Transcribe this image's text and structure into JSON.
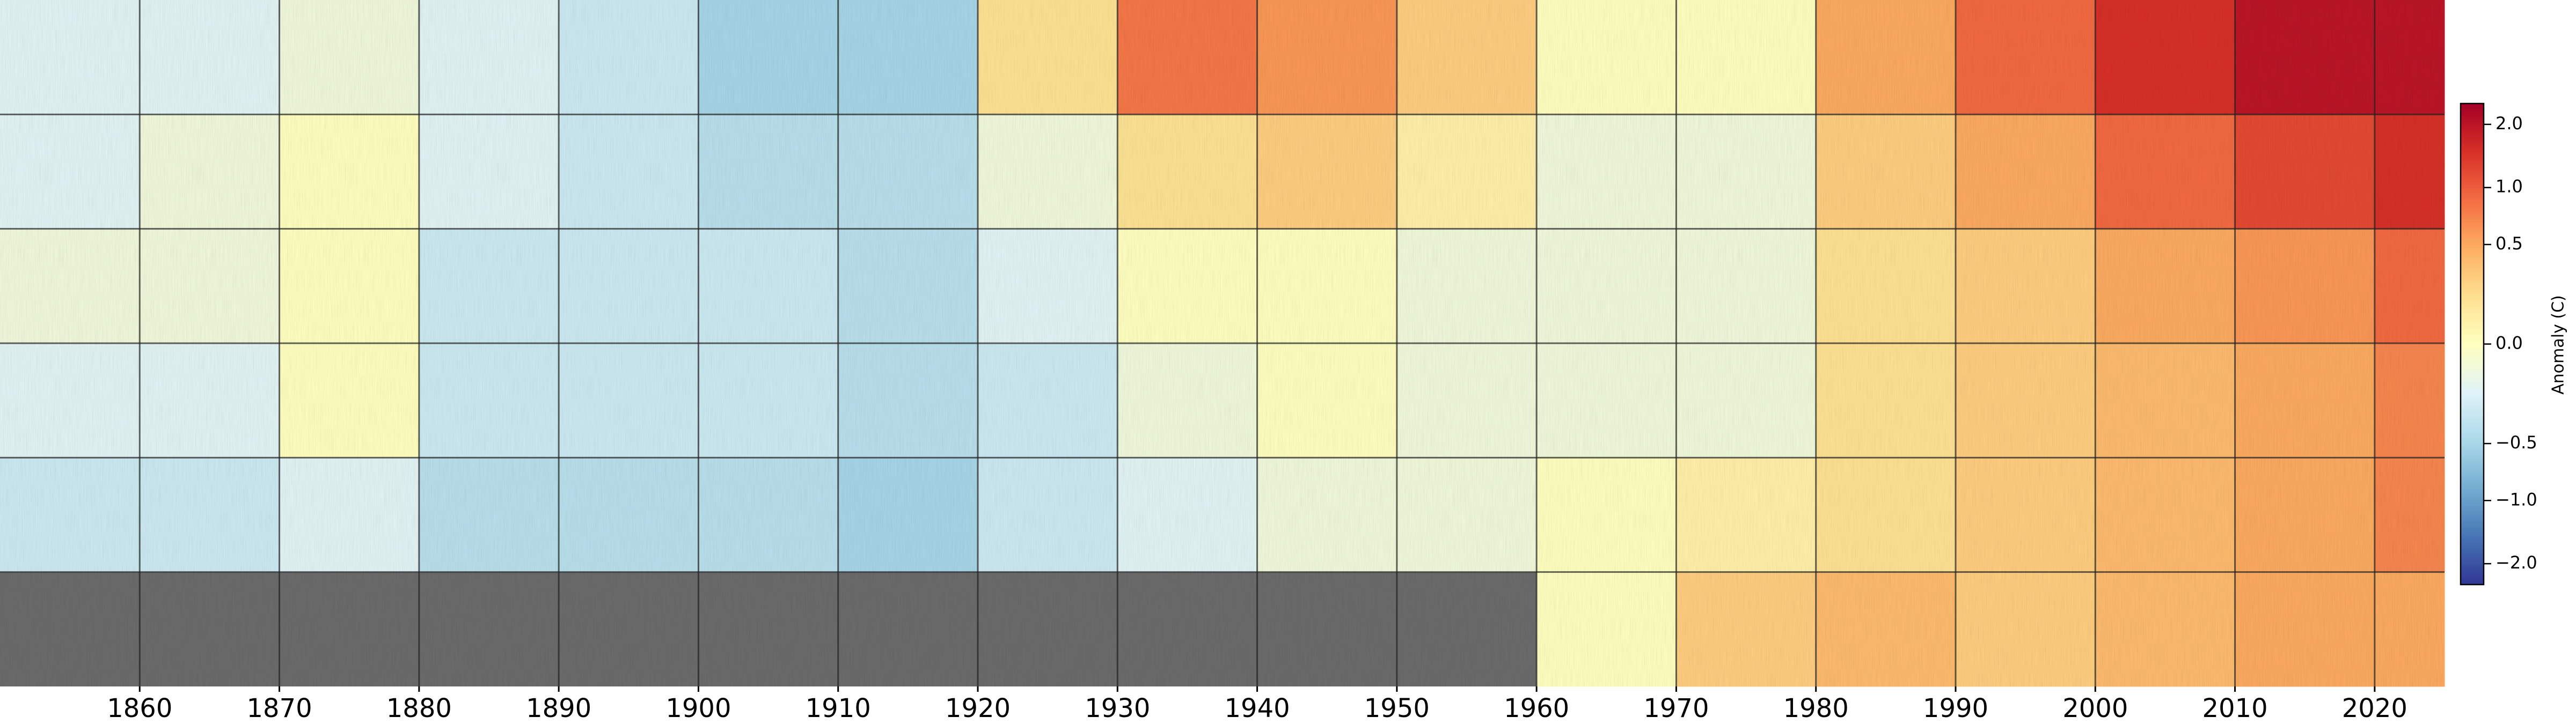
{
  "chart_data": {
    "type": "heatmap",
    "xbins": [
      1850,
      1860,
      1870,
      1880,
      1890,
      1900,
      1910,
      1920,
      1930,
      1940,
      1950,
      1960,
      1970,
      1980,
      1990,
      2000,
      2010,
      2020,
      2025
    ],
    "xlim": [
      1850,
      2025
    ],
    "xticks": [
      1860,
      1870,
      1880,
      1890,
      1900,
      1910,
      1920,
      1930,
      1940,
      1950,
      1960,
      1970,
      1980,
      1990,
      2000,
      2010,
      2020
    ],
    "values": [
      [
        -0.2,
        -0.2,
        -0.1,
        -0.2,
        -0.3,
        -0.5,
        -0.5,
        0.2,
        0.8,
        0.6,
        0.3,
        0.0,
        0.0,
        0.5,
        0.9,
        1.5,
        2.0,
        2.0
      ],
      [
        -0.2,
        -0.1,
        0.0,
        -0.2,
        -0.3,
        -0.4,
        -0.4,
        -0.1,
        0.2,
        0.3,
        0.1,
        -0.1,
        -0.1,
        0.3,
        0.5,
        0.9,
        1.2,
        1.5
      ],
      [
        -0.1,
        -0.1,
        0.0,
        -0.3,
        -0.3,
        -0.3,
        -0.4,
        -0.2,
        0.0,
        0.0,
        -0.1,
        -0.1,
        -0.1,
        0.2,
        0.3,
        0.5,
        0.6,
        0.9
      ],
      [
        -0.2,
        -0.2,
        0.0,
        -0.3,
        -0.3,
        -0.3,
        -0.4,
        -0.3,
        -0.1,
        0.0,
        -0.1,
        -0.1,
        -0.1,
        0.2,
        0.3,
        0.4,
        0.5,
        0.7
      ],
      [
        -0.3,
        -0.3,
        -0.2,
        -0.4,
        -0.4,
        -0.4,
        -0.5,
        -0.3,
        -0.2,
        -0.1,
        -0.1,
        0.0,
        0.1,
        0.2,
        0.3,
        0.4,
        0.5,
        0.7
      ],
      [
        null,
        null,
        null,
        null,
        null,
        null,
        null,
        null,
        null,
        null,
        null,
        0.0,
        0.3,
        0.4,
        0.3,
        0.4,
        0.5,
        0.5
      ]
    ],
    "clim": [
      -2.5,
      2.5
    ],
    "cticks": [
      {
        "value": -2.0,
        "label": "−2.0"
      },
      {
        "value": -1.0,
        "label": "−1.0"
      },
      {
        "value": -0.5,
        "label": "−0.5"
      },
      {
        "value": 0.0,
        "label": "0.0"
      },
      {
        "value": 0.5,
        "label": "0.5"
      },
      {
        "value": 1.0,
        "label": "1.0"
      },
      {
        "value": 2.0,
        "label": "2.0"
      }
    ],
    "colorbar_label": "Anomaly (C)",
    "missing_color": "#6b6b6b",
    "grid": true
  }
}
